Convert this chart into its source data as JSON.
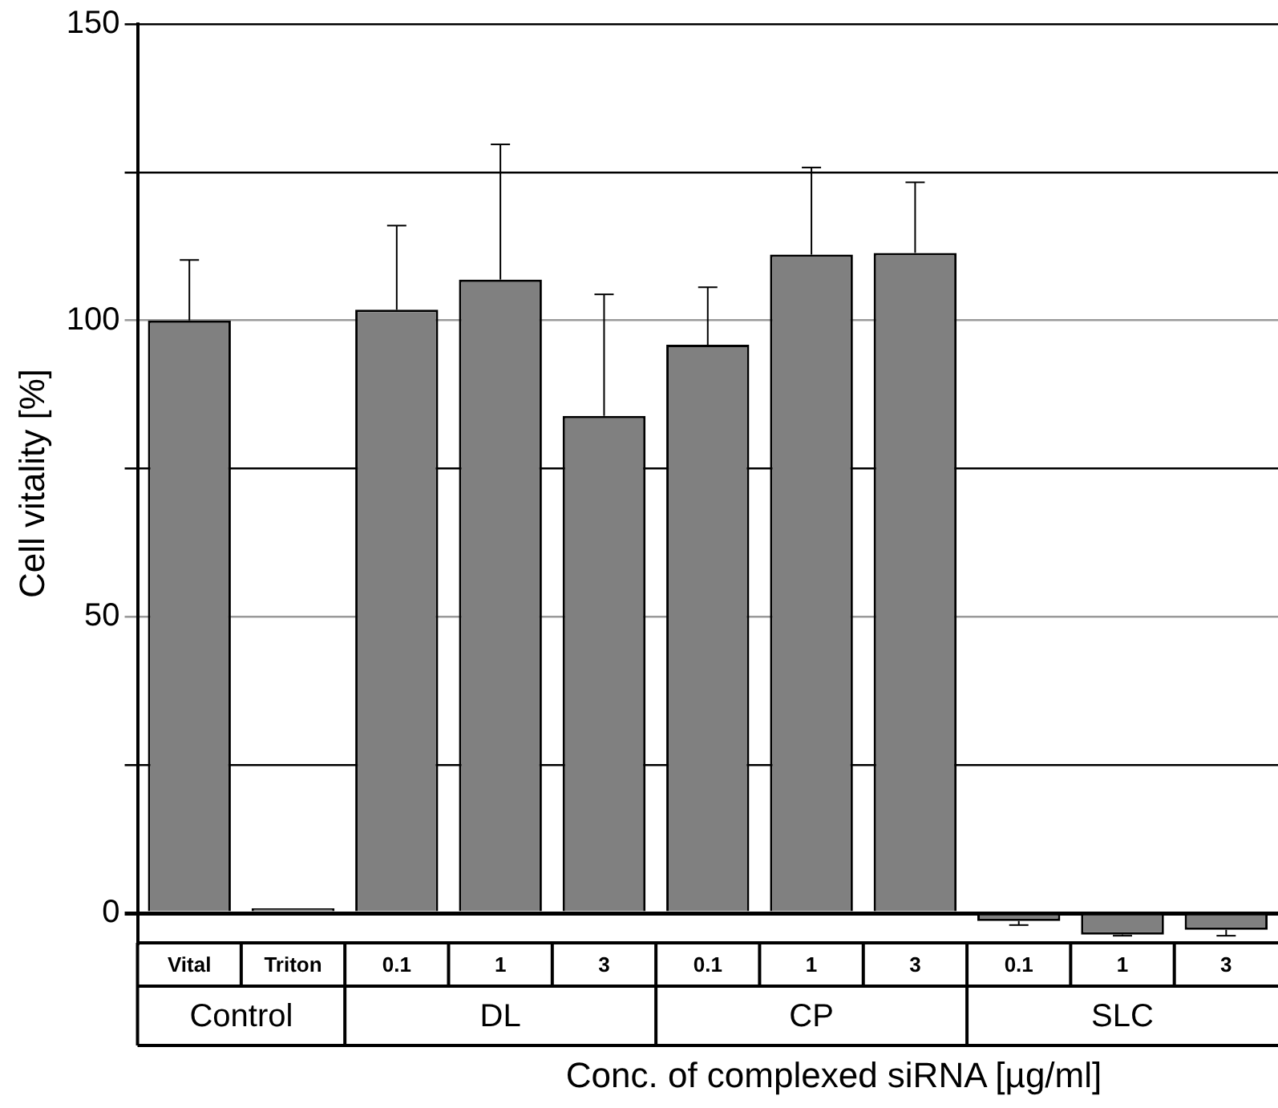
{
  "chart_data": {
    "type": "bar",
    "xlabel": "Conc. of complexed siRNA [µg/ml]",
    "ylabel": "Cell vitality [%]",
    "categories": [
      "Vital",
      "Triton",
      "0.1",
      "1",
      "3",
      "0.1",
      "1",
      "3",
      "0.1",
      "1",
      "3"
    ],
    "values": [
      100,
      0.8,
      101.8,
      106.9,
      83.9,
      95.9,
      111.1,
      111.4,
      -1.3,
      -3.6,
      -2.8
    ],
    "errors": [
      [
        100,
        110.2
      ],
      null,
      [
        101.8,
        116.0
      ],
      [
        106.9,
        129.7
      ],
      [
        83.9,
        104.4
      ],
      [
        95.9,
        105.6
      ],
      [
        111.1,
        125.8
      ],
      [
        111.4,
        123.3
      ],
      [
        -2.0,
        -1.3
      ],
      [
        -3.8,
        -3.6
      ],
      [
        -3.8,
        -2.8
      ]
    ],
    "color": "#808080",
    "ylim": [
      -5,
      150
    ],
    "yticks": [
      0,
      {
        "value": 25,
        "label": null
      },
      50,
      {
        "value": 75,
        "label": null
      },
      100,
      {
        "value": 125,
        "label": null
      },
      150
    ],
    "grid": "y",
    "annotations": [
      "Control",
      "DL",
      "CP",
      "SLC"
    ]
  }
}
